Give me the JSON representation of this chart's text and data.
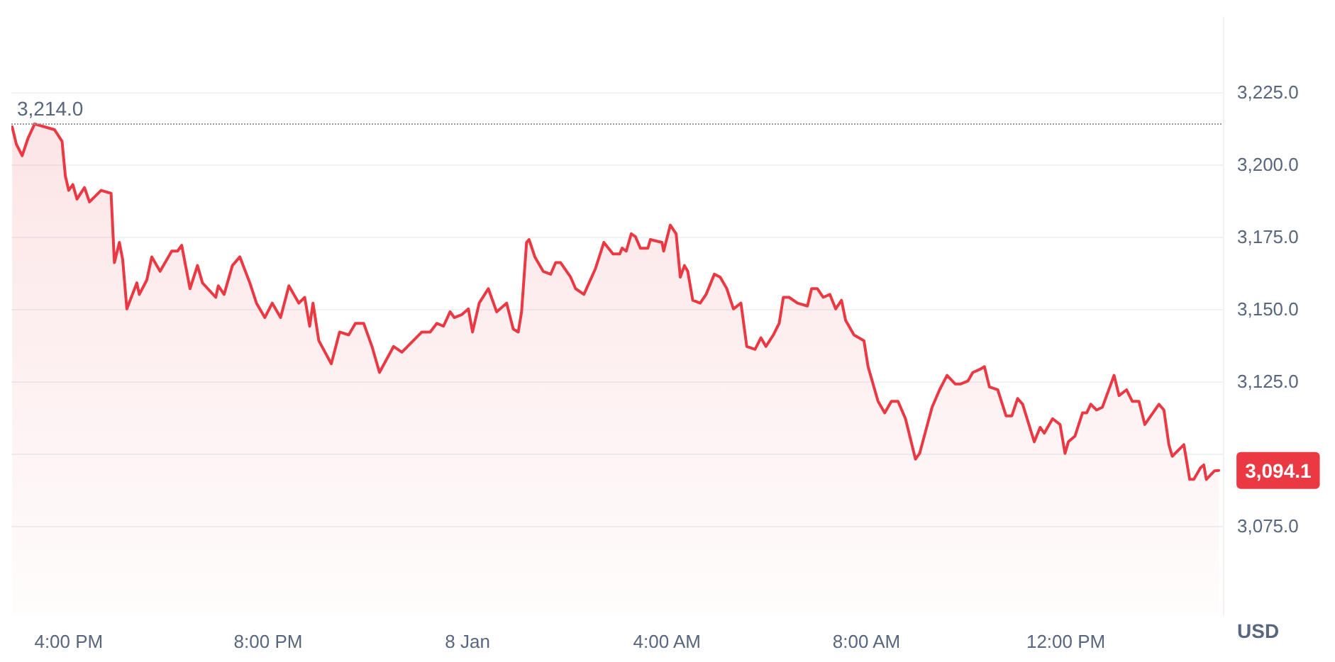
{
  "chart_data": {
    "type": "area",
    "ylabel": "USD",
    "x": [
      "--01-07T14:52",
      "--01-07T14:57",
      "--01-07T15:04",
      "--01-07T15:11",
      "--01-07T15:19",
      "--01-07T15:43",
      "--01-07T15:52",
      "--01-07T15:56",
      "--01-07T16:00",
      "--01-07T16:05",
      "--01-07T16:10",
      "--01-07T16:19",
      "--01-07T16:25",
      "--01-07T16:39",
      "--01-07T16:51",
      "--01-07T16:55",
      "--01-07T17:01",
      "--01-07T17:05",
      "--01-07T17:10",
      "--01-07T17:22",
      "--01-07T17:25",
      "--01-07T17:34",
      "--01-07T17:40",
      "--01-07T17:50",
      "--01-07T18:04",
      "--01-07T18:11",
      "--01-07T18:16",
      "--01-07T18:26",
      "--01-07T18:35",
      "--01-07T18:41",
      "--01-07T18:57",
      "--01-07T19:00",
      "--01-07T19:07",
      "--01-07T19:17",
      "--01-07T19:26",
      "--01-07T19:38",
      "--01-07T19:46",
      "--01-07T19:56",
      "--01-07T20:05",
      "--01-07T20:15",
      "--01-07T20:25",
      "--01-07T20:37",
      "--01-07T20:44",
      "--01-07T20:50",
      "--01-07T20:54",
      "--01-07T21:01",
      "--01-07T21:16",
      "--01-07T21:26",
      "--01-07T21:37",
      "--01-07T21:45",
      "--01-07T21:55",
      "--01-07T22:05",
      "--01-07T22:14",
      "--01-07T22:31",
      "--01-07T22:41",
      "--01-07T23:05",
      "--01-07T23:15",
      "--01-07T23:23",
      "--01-07T23:31",
      "--01-07T23:39",
      "--01-07T23:44",
      "--01-07T23:53",
      "--01-08T00:01",
      "--01-08T00:06",
      "--01-08T00:14",
      "--01-08T00:25",
      "--01-08T00:35",
      "--01-08T00:47",
      "--01-08T00:55",
      "--01-08T01:01",
      "--01-08T01:05",
      "--01-08T01:11",
      "--01-08T01:14",
      "--01-08T01:21",
      "--01-08T01:31",
      "--01-08T01:40",
      "--01-08T01:46",
      "--01-08T01:52",
      "--01-08T02:04",
      "--01-08T02:10",
      "--01-08T02:20",
      "--01-08T02:34",
      "--01-08T02:44",
      "--01-08T02:55",
      "--01-08T03:03",
      "--01-08T03:06",
      "--01-08T03:11",
      "--01-08T03:17",
      "--01-08T03:22",
      "--01-08T03:28",
      "--01-08T03:37",
      "--01-08T03:40",
      "--01-08T03:54",
      "--01-08T03:56",
      "--01-08T04:04",
      "--01-08T04:11",
      "--01-08T04:16",
      "--01-08T04:21",
      "--01-08T04:25",
      "--01-08T04:31",
      "--01-08T04:40",
      "--01-08T04:47",
      "--01-08T04:57",
      "--01-08T05:04",
      "--01-08T05:12",
      "--01-08T05:20",
      "--01-08T05:29",
      "--01-08T05:36",
      "--01-08T05:46",
      "--01-08T05:53",
      "--01-08T05:59",
      "--01-08T06:08",
      "--01-08T06:15",
      "--01-08T06:20",
      "--01-08T06:27",
      "--01-08T06:37",
      "--01-08T06:49",
      "--01-08T06:54",
      "--01-08T07:01",
      "--01-08T07:08",
      "--01-08T07:16",
      "--01-08T07:23",
      "--01-08T07:30",
      "--01-08T07:35",
      "--01-08T07:45",
      "--01-08T07:57",
      "--01-08T08:02",
      "--01-08T08:14",
      "--01-08T08:22",
      "--01-08T08:30",
      "--01-08T08:38",
      "--01-08T08:47",
      "--01-08T08:59",
      "--01-08T09:04",
      "--01-08T09:19",
      "--01-08T09:28",
      "--01-08T09:37",
      "--01-08T09:47",
      "--01-08T09:53",
      "--01-08T10:02",
      "--01-08T10:08",
      "--01-08T10:16",
      "--01-08T10:22",
      "--01-08T10:28",
      "--01-08T10:38",
      "--01-08T10:48",
      "--01-08T10:55",
      "--01-08T11:02",
      "--01-08T11:08",
      "--01-08T11:22",
      "--01-08T11:29",
      "--01-08T11:34",
      "--01-08T11:44",
      "--01-08T11:53",
      "--01-08T11:59",
      "--01-08T12:03",
      "--01-08T12:11",
      "--01-08T12:20",
      "--01-08T12:25",
      "--01-08T12:30",
      "--01-08T12:37",
      "--01-08T12:44",
      "--01-08T12:58",
      "--01-08T13:04",
      "--01-08T13:13",
      "--01-08T13:20",
      "--01-08T13:28",
      "--01-08T13:35",
      "--01-08T13:52",
      "--01-08T13:58",
      "--01-08T14:04",
      "--01-08T14:08",
      "--01-08T14:22",
      "--01-08T14:29",
      "--01-08T14:34",
      "--01-08T14:42",
      "--01-08T14:46",
      "--01-08T14:49",
      "--01-08T14:59",
      "--01-08T15:04"
    ],
    "series": [
      {
        "color": "#ea3943",
        "values": [
          3213,
          3207,
          3203,
          3209,
          3214,
          3212,
          3208,
          3196,
          3191,
          3193,
          3188,
          3192,
          3187,
          3191,
          3190,
          3166,
          3173,
          3167,
          3150,
          3159,
          3155,
          3160,
          3168,
          3163,
          3170,
          3170,
          3172,
          3157,
          3165,
          3159,
          3154,
          3158,
          3155,
          3165,
          3168,
          3159,
          3152,
          3147,
          3152,
          3147,
          3158,
          3152,
          3154,
          3144,
          3152,
          3139,
          3131,
          3142,
          3141,
          3145,
          3145,
          3137,
          3128,
          3137,
          3135,
          3142,
          3142,
          3145,
          3144,
          3149,
          3147,
          3148,
          3150,
          3142,
          3152,
          3157,
          3149,
          3152,
          3143,
          3142,
          3149,
          3173,
          3174,
          3168,
          3163,
          3162,
          3166,
          3166,
          3161,
          3157,
          3155,
          3164,
          3173,
          3169,
          3169,
          3171,
          3170,
          3176,
          3175,
          3171,
          3171,
          3174,
          3173,
          3170,
          3179,
          3176,
          3161,
          3165,
          3163,
          3153,
          3152,
          3155,
          3162,
          3161,
          3157,
          3150,
          3152,
          3137,
          3136,
          3140,
          3137,
          3141,
          3145,
          3154,
          3154,
          3152,
          3151,
          3157,
          3157,
          3154,
          3155,
          3150,
          3153,
          3146,
          3141,
          3139,
          3130,
          3118,
          3114,
          3118,
          3118,
          3112,
          3098,
          3100,
          3116,
          3122,
          3127,
          3124,
          3124,
          3125,
          3128,
          3129,
          3130,
          3123,
          3122,
          3113,
          3113,
          3119,
          3117,
          3104,
          3109,
          3107,
          3112,
          3110,
          3100,
          3104,
          3106,
          3114,
          3114,
          3117,
          3115,
          3116,
          3127,
          3120,
          3122,
          3118,
          3118,
          3110,
          3117,
          3115,
          3103,
          3099,
          3103,
          3091,
          3091,
          3095,
          3096,
          3091,
          3094,
          3094.1
        ]
      }
    ],
    "xlim": [
      "--01-07T14:51",
      "--01-08T15:09"
    ],
    "xticks": [
      {
        "value": "--01-07T16:00",
        "label": "4:00 PM"
      },
      {
        "value": "--01-07T20:00",
        "label": "8:00 PM"
      },
      {
        "value": "--01-08T00:00",
        "label": "8 Jan"
      },
      {
        "value": "--01-08T04:00",
        "label": "4:00 AM"
      },
      {
        "value": "--01-08T08:00",
        "label": "8:00 AM"
      },
      {
        "value": "--01-08T12:00",
        "label": "12:00 PM"
      }
    ],
    "ylim": [
      3044,
      3251
    ],
    "yticks": [
      {
        "value": 3075,
        "label": "3,075.0"
      },
      {
        "value": 3100,
        "label": null
      },
      {
        "value": 3125,
        "label": "3,125.0"
      },
      {
        "value": 3150,
        "label": "3,150.0"
      },
      {
        "value": 3175,
        "label": "3,175.0"
      },
      {
        "value": 3200,
        "label": "3,200.0"
      },
      {
        "value": 3225,
        "label": "3,225.0"
      }
    ],
    "ref_lines": [
      {
        "axis": "y",
        "value": 3214.0,
        "label": "3,214.0",
        "line_style": "dotted",
        "color": "#999999"
      }
    ],
    "annotations": [
      {
        "text": "3,094.1",
        "x": "--01-08T15:04",
        "y": 3094.1
      }
    ],
    "grid": "y",
    "marker": "none",
    "line_style": "solid"
  }
}
